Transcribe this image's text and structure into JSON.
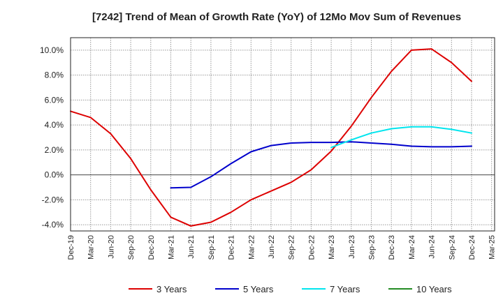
{
  "chart_data": {
    "type": "line",
    "title": "[7242]  Trend of Mean of Growth Rate (YoY) of 12Mo Mov Sum of Revenues",
    "xlabel": "",
    "ylabel": "",
    "categories": [
      "Dec-19",
      "Mar-20",
      "Jun-20",
      "Sep-20",
      "Dec-20",
      "Mar-21",
      "Jun-21",
      "Sep-21",
      "Dec-21",
      "Mar-22",
      "Jun-22",
      "Sep-22",
      "Dec-22",
      "Mar-23",
      "Jun-23",
      "Sep-23",
      "Dec-23",
      "Mar-24",
      "Jun-24",
      "Sep-24",
      "Dec-24",
      "Mar-25"
    ],
    "y_ticks": [
      "10.0%",
      "8.0%",
      "6.0%",
      "4.0%",
      "2.0%",
      "0.0%",
      "-2.0%",
      "-4.0%"
    ],
    "y_tick_values": [
      10,
      8,
      6,
      4,
      2,
      0,
      -2,
      -4
    ],
    "ylim": [
      -4.5,
      11.0
    ],
    "grid": true,
    "series": [
      {
        "name": "3 Years",
        "color": "#dd0000",
        "values": [
          5.1,
          4.6,
          3.3,
          1.3,
          -1.2,
          -3.4,
          -4.1,
          -3.8,
          -3.0,
          -2.0,
          -1.3,
          -0.6,
          0.4,
          1.9,
          3.9,
          6.2,
          8.3,
          10.0,
          10.1,
          9.0,
          7.5,
          null
        ]
      },
      {
        "name": "5 Years",
        "color": "#0000cc",
        "values": [
          null,
          null,
          null,
          null,
          null,
          -1.05,
          -1.0,
          -0.15,
          0.9,
          1.85,
          2.35,
          2.55,
          2.6,
          2.6,
          2.65,
          2.55,
          2.45,
          2.3,
          2.25,
          2.25,
          2.3,
          null
        ]
      },
      {
        "name": "7 Years",
        "color": "#00e5ee",
        "values": [
          null,
          null,
          null,
          null,
          null,
          null,
          null,
          null,
          null,
          null,
          null,
          null,
          null,
          2.2,
          2.8,
          3.35,
          3.7,
          3.85,
          3.85,
          3.65,
          3.35,
          null
        ]
      },
      {
        "name": "10 Years",
        "color": "#228b22",
        "values": [
          null,
          null,
          null,
          null,
          null,
          null,
          null,
          null,
          null,
          null,
          null,
          null,
          null,
          null,
          null,
          null,
          null,
          null,
          null,
          null,
          null,
          null
        ]
      }
    ]
  }
}
